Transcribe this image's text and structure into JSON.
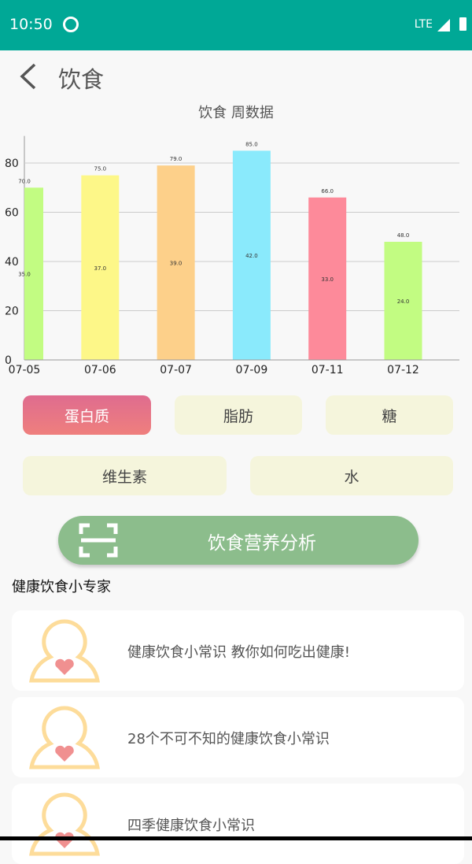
{
  "status_bar": {
    "time": "10:50",
    "network": "LTE"
  },
  "header": {
    "title": "饮食"
  },
  "chart_data": {
    "type": "bar",
    "title": "饮食 周数据",
    "categories": [
      "07-05",
      "07-06",
      "07-07",
      "07-09",
      "07-11",
      "07-12"
    ],
    "values": [
      70,
      75,
      79,
      85,
      66,
      48
    ],
    "value_labels": [
      "70.0",
      "75.0",
      "79.0",
      "85.0",
      "66.0",
      "48.0"
    ],
    "inner_labels": [
      "35.0",
      "37.0",
      "39.0",
      "42.0",
      "33.0",
      "24.0"
    ],
    "colors": [
      "#c2fc82",
      "#fdf788",
      "#fdd08a",
      "#8aeafc",
      "#fd8a9a",
      "#c2fc82"
    ],
    "yticks": [
      "0",
      "20",
      "40",
      "60",
      "80"
    ],
    "ylim": [
      0,
      91
    ],
    "grid": true
  },
  "nutrients": [
    {
      "label": "蛋白质",
      "selected": true
    },
    {
      "label": "脂肪",
      "selected": false
    },
    {
      "label": "糖",
      "selected": false
    },
    {
      "label": "维生素",
      "selected": false
    },
    {
      "label": "水",
      "selected": false
    }
  ],
  "analyze_button": {
    "label": "饮食营养分析"
  },
  "section_title": "健康饮食小专家",
  "articles": [
    {
      "title": "健康饮食小常识 教你如何吃出健康!"
    },
    {
      "title": "28个不可不知的健康饮食小常识"
    },
    {
      "title": "四季健康饮食小常识"
    }
  ]
}
